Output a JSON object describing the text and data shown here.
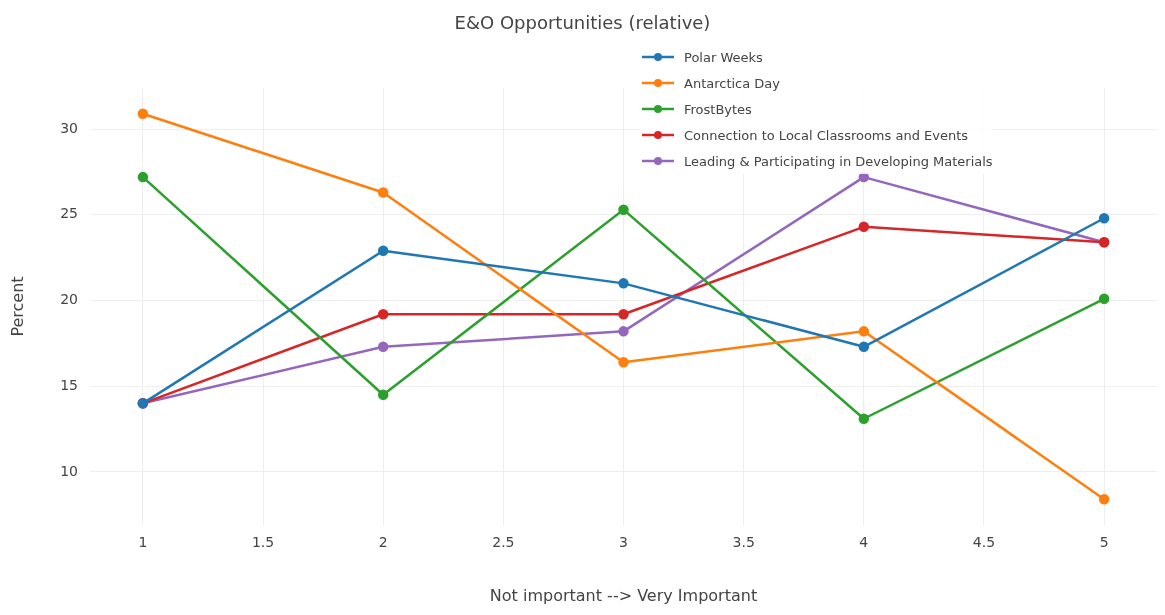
{
  "chart_data": {
    "type": "line",
    "title": "E&O Opportunities (relative)",
    "xlabel": "Not important --> Very Important",
    "ylabel": "Percent",
    "x": [
      1,
      2,
      3,
      4,
      5
    ],
    "series": [
      {
        "name": "Polar Weeks",
        "color": "#1f77b4",
        "values": [
          14.0,
          22.9,
          21.0,
          17.3,
          24.8
        ]
      },
      {
        "name": "Antarctica Day",
        "color": "#ff7f0e",
        "values": [
          30.9,
          26.3,
          16.4,
          18.2,
          8.4
        ]
      },
      {
        "name": "FrostBytes",
        "color": "#2ca02c",
        "values": [
          27.2,
          14.5,
          25.3,
          13.1,
          20.1
        ]
      },
      {
        "name": "Connection to Local Classrooms and Events",
        "color": "#d62728",
        "values": [
          14.0,
          19.2,
          19.2,
          24.3,
          23.4
        ]
      },
      {
        "name": "Leading & Participating in Developing Materials",
        "color": "#9467bd",
        "values": [
          14.0,
          17.3,
          18.2,
          27.2,
          23.4
        ]
      }
    ],
    "xlim": [
      0.78,
      5.22
    ],
    "xticks": [
      1,
      1.5,
      2,
      2.5,
      3,
      3.5,
      4,
      4.5,
      5
    ],
    "ylim": [
      6.9,
      32.4
    ],
    "yticks": [
      10,
      15,
      20,
      25,
      30
    ],
    "grid": true,
    "legend": "top right",
    "marker": "circle",
    "line_style": "solid"
  }
}
